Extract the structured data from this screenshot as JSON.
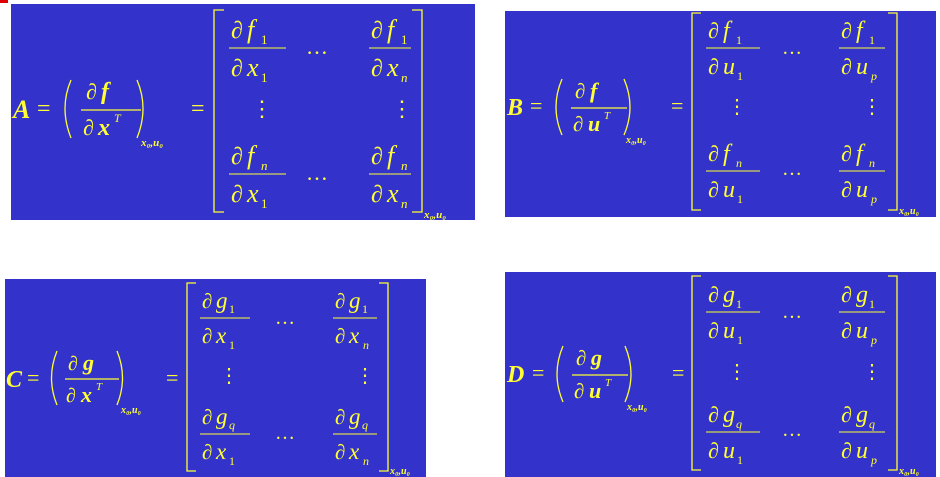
{
  "accent_color": "#ffff33",
  "background_color": "#3333cc",
  "panels": [
    {
      "id": "A",
      "lhs": {
        "var": "A",
        "fn": "f",
        "arg": "x",
        "sup": "T"
      },
      "subscript": "x₀,u₀",
      "matrix": {
        "top_left": {
          "num_fn": "f",
          "num_sub": "1",
          "den_var": "x",
          "den_sub": "1"
        },
        "top_right": {
          "num_fn": "f",
          "num_sub": "1",
          "den_var": "x",
          "den_sub": "n"
        },
        "bottom_left": {
          "num_fn": "f",
          "num_sub": "n",
          "den_var": "x",
          "den_sub": "1"
        },
        "bottom_right": {
          "num_fn": "f",
          "num_sub": "n",
          "den_var": "x",
          "den_sub": "n"
        }
      }
    },
    {
      "id": "B",
      "lhs": {
        "var": "B",
        "fn": "f",
        "arg": "u",
        "sup": "T"
      },
      "subscript": "x₀,u₀",
      "matrix": {
        "top_left": {
          "num_fn": "f",
          "num_sub": "1",
          "den_var": "u",
          "den_sub": "1"
        },
        "top_right": {
          "num_fn": "f",
          "num_sub": "1",
          "den_var": "u",
          "den_sub": "p"
        },
        "bottom_left": {
          "num_fn": "f",
          "num_sub": "n",
          "den_var": "u",
          "den_sub": "1"
        },
        "bottom_right": {
          "num_fn": "f",
          "num_sub": "n",
          "den_var": "u",
          "den_sub": "p"
        }
      }
    },
    {
      "id": "C",
      "lhs": {
        "var": "C",
        "fn": "g",
        "arg": "x",
        "sup": "T"
      },
      "subscript": "x₀,u₀",
      "matrix": {
        "top_left": {
          "num_fn": "g",
          "num_sub": "1",
          "den_var": "x",
          "den_sub": "1"
        },
        "top_right": {
          "num_fn": "g",
          "num_sub": "1",
          "den_var": "x",
          "den_sub": "n"
        },
        "bottom_left": {
          "num_fn": "g",
          "num_sub": "q",
          "den_var": "x",
          "den_sub": "1"
        },
        "bottom_right": {
          "num_fn": "g",
          "num_sub": "q",
          "den_var": "x",
          "den_sub": "n"
        }
      }
    },
    {
      "id": "D",
      "lhs": {
        "var": "D",
        "fn": "g",
        "arg": "u",
        "sup": "T"
      },
      "subscript": "x₀,u₀",
      "matrix": {
        "top_left": {
          "num_fn": "g",
          "num_sub": "1",
          "den_var": "u",
          "den_sub": "1"
        },
        "top_right": {
          "num_fn": "g",
          "num_sub": "1",
          "den_var": "u",
          "den_sub": "p"
        },
        "bottom_left": {
          "num_fn": "g",
          "num_sub": "q",
          "den_var": "u",
          "den_sub": "1"
        },
        "bottom_right": {
          "num_fn": "g",
          "num_sub": "q",
          "den_var": "u",
          "den_sub": "p"
        }
      }
    }
  ]
}
